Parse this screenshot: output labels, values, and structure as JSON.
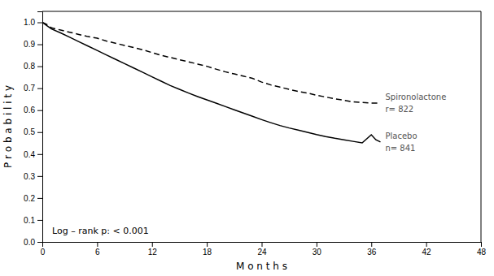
{
  "chart_data": {
    "type": "line",
    "xlabel": "M o n t h s",
    "ylabel": "P r o b a b i l i t y",
    "xlim": [
      0,
      48
    ],
    "ylim": [
      0.0,
      1.05
    ],
    "xticks": [
      0,
      6,
      12,
      18,
      24,
      30,
      36,
      42,
      48
    ],
    "yticks": [
      {
        "value": 0.0,
        "label": "0.0"
      },
      0.1,
      0.2,
      0.3,
      0.4,
      0.5,
      0.6,
      0.7,
      0.8,
      0.9,
      {
        "value": 1.0,
        "label": "1.0"
      }
    ],
    "series": [
      {
        "labels": [
          "Spironolactone",
          "r= 822"
        ],
        "color": "#000000",
        "line_style": "dashed",
        "x": [
          0,
          0.5,
          1,
          2,
          3,
          4,
          5,
          6,
          7,
          8,
          9,
          10,
          11,
          12,
          13,
          14,
          15,
          16,
          17,
          18,
          19,
          20,
          21,
          22,
          23,
          24,
          25,
          26,
          27,
          28,
          29,
          30,
          31,
          32,
          33,
          34,
          35,
          36,
          37
        ],
        "values": [
          1.0,
          0.99,
          0.975,
          0.965,
          0.955,
          0.945,
          0.935,
          0.928,
          0.915,
          0.905,
          0.895,
          0.885,
          0.875,
          0.862,
          0.85,
          0.84,
          0.83,
          0.82,
          0.81,
          0.8,
          0.787,
          0.775,
          0.765,
          0.755,
          0.745,
          0.728,
          0.715,
          0.705,
          0.695,
          0.685,
          0.678,
          0.668,
          0.66,
          0.652,
          0.645,
          0.638,
          0.635,
          0.632,
          0.632
        ]
      },
      {
        "labels": [
          "Placebo",
          "n= 841"
        ],
        "color": "#000000",
        "line_style": "solid",
        "x": [
          0,
          0.5,
          1,
          2,
          3,
          4,
          5,
          6,
          7,
          8,
          9,
          10,
          11,
          12,
          13,
          14,
          15,
          16,
          17,
          18,
          19,
          20,
          21,
          22,
          23,
          24,
          25,
          26,
          27,
          28,
          29,
          30,
          31,
          32,
          33,
          34,
          35,
          36,
          36.5,
          37
        ],
        "values": [
          1.0,
          0.985,
          0.97,
          0.952,
          0.932,
          0.912,
          0.892,
          0.872,
          0.852,
          0.832,
          0.812,
          0.792,
          0.772,
          0.752,
          0.732,
          0.712,
          0.695,
          0.678,
          0.662,
          0.647,
          0.632,
          0.617,
          0.602,
          0.587,
          0.572,
          0.557,
          0.543,
          0.53,
          0.519,
          0.509,
          0.499,
          0.489,
          0.48,
          0.472,
          0.465,
          0.458,
          0.451,
          0.488,
          0.465,
          0.455
        ]
      }
    ],
    "annotations": [
      "Log – rank p:  < 0.001"
    ]
  }
}
